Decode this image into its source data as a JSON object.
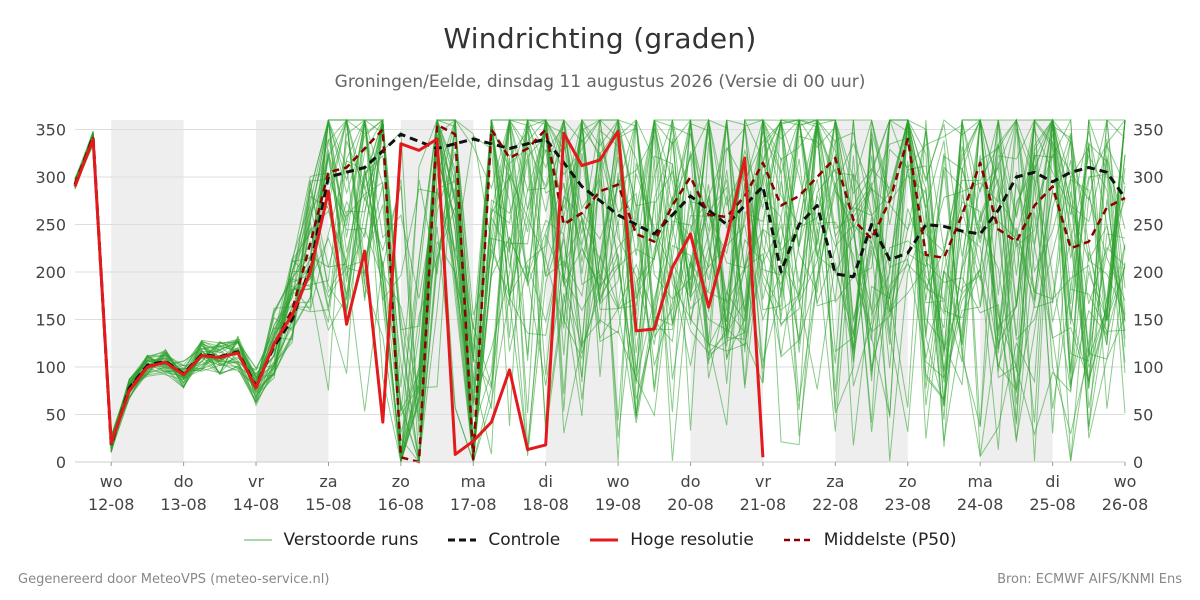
{
  "header": {
    "title": "Windrichting (graden)",
    "subtitle": "Groningen/Eelde, dinsdag 11 augustus 2026 (Versie di 00 uur)"
  },
  "footer": {
    "generated": "Gegenereerd door MeteoVPS (meteo-service.nl)",
    "source": "Bron: ECMWF AIFS/KNMI Ens"
  },
  "legend": {
    "ensemble": "Verstoorde runs",
    "control": "Controle",
    "hires": "Hoge resolutie",
    "median": "Middelste (P50)"
  },
  "colors": {
    "ensemble": "#2ca02c",
    "control": "#111111",
    "hires": "#e31a1c",
    "median": "#8b0000",
    "weekend_band": "#eeeeee",
    "grid": "#dddddd"
  },
  "chart_data": {
    "type": "line",
    "title": "Windrichting (graden)",
    "ylim": [
      0,
      360
    ],
    "xlim": [
      "2026-08-11T12:00",
      "2026-08-26T00:00"
    ],
    "y_ticks": [
      0,
      50,
      100,
      150,
      200,
      250,
      300,
      350
    ],
    "x_ticks": [
      {
        "day": "wo",
        "date": "12-08"
      },
      {
        "day": "do",
        "date": "13-08"
      },
      {
        "day": "vr",
        "date": "14-08"
      },
      {
        "day": "za",
        "date": "15-08"
      },
      {
        "day": "zo",
        "date": "16-08"
      },
      {
        "day": "ma",
        "date": "17-08"
      },
      {
        "day": "di",
        "date": "18-08"
      },
      {
        "day": "wo",
        "date": "19-08"
      },
      {
        "day": "do",
        "date": "20-08"
      },
      {
        "day": "vr",
        "date": "21-08"
      },
      {
        "day": "za",
        "date": "22-08"
      },
      {
        "day": "zo",
        "date": "23-08"
      },
      {
        "day": "ma",
        "date": "24-08"
      },
      {
        "day": "di",
        "date": "25-08"
      },
      {
        "day": "wo",
        "date": "26-08"
      }
    ],
    "shaded_bands": [
      [
        "2026-08-12T00:00",
        "2026-08-13T00:00"
      ],
      [
        "2026-08-14T00:00",
        "2026-08-15T00:00"
      ],
      [
        "2026-08-16T00:00",
        "2026-08-17T00:00"
      ],
      [
        "2026-08-18T00:00",
        "2026-08-19T00:00"
      ],
      [
        "2026-08-20T00:00",
        "2026-08-21T00:00"
      ],
      [
        "2026-08-22T00:00",
        "2026-08-23T00:00"
      ],
      [
        "2026-08-24T00:00",
        "2026-08-25T00:00"
      ]
    ],
    "series": [
      {
        "name": "Hoge resolutie",
        "x": [
          "2026-08-11T12:00",
          "2026-08-11T18:00",
          "2026-08-12T00:00",
          "2026-08-12T06:00",
          "2026-08-12T12:00",
          "2026-08-12T18:00",
          "2026-08-13T00:00",
          "2026-08-13T06:00",
          "2026-08-13T12:00",
          "2026-08-13T18:00",
          "2026-08-14T00:00",
          "2026-08-14T06:00",
          "2026-08-14T12:00",
          "2026-08-14T18:00",
          "2026-08-15T00:00",
          "2026-08-15T06:00",
          "2026-08-15T12:00",
          "2026-08-15T18:00",
          "2026-08-16T00:00",
          "2026-08-16T06:00",
          "2026-08-16T12:00",
          "2026-08-16T18:00",
          "2026-08-17T00:00",
          "2026-08-17T06:00",
          "2026-08-17T12:00",
          "2026-08-17T18:00",
          "2026-08-18T00:00",
          "2026-08-18T06:00",
          "2026-08-18T12:00",
          "2026-08-18T18:00",
          "2026-08-19T00:00",
          "2026-08-19T06:00",
          "2026-08-19T12:00",
          "2026-08-19T18:00",
          "2026-08-20T00:00",
          "2026-08-20T06:00",
          "2026-08-20T12:00",
          "2026-08-20T18:00",
          "2026-08-21T00:00"
        ],
        "y": [
          290,
          340,
          20,
          75,
          100,
          105,
          92,
          112,
          110,
          115,
          78,
          125,
          155,
          200,
          285,
          145,
          222,
          42,
          335,
          328,
          340,
          8,
          22,
          42,
          97,
          13,
          18,
          346,
          312,
          318,
          348,
          138,
          140,
          205,
          240,
          163,
          235,
          320,
          5
        ]
      },
      {
        "name": "Controle",
        "x": [
          "2026-08-11T12:00",
          "2026-08-11T18:00",
          "2026-08-12T00:00",
          "2026-08-12T06:00",
          "2026-08-12T12:00",
          "2026-08-12T18:00",
          "2026-08-13T00:00",
          "2026-08-13T06:00",
          "2026-08-13T12:00",
          "2026-08-13T18:00",
          "2026-08-14T00:00",
          "2026-08-14T06:00",
          "2026-08-14T12:00",
          "2026-08-14T18:00",
          "2026-08-15T00:00",
          "2026-08-15T12:00",
          "2026-08-16T00:00",
          "2026-08-16T12:00",
          "2026-08-17T00:00",
          "2026-08-17T12:00",
          "2026-08-18T00:00",
          "2026-08-18T12:00",
          "2026-08-19T00:00",
          "2026-08-19T12:00",
          "2026-08-20T00:00",
          "2026-08-20T12:00",
          "2026-08-21T00:00",
          "2026-08-21T06:00",
          "2026-08-21T12:00",
          "2026-08-21T18:00",
          "2026-08-22T00:00",
          "2026-08-22T06:00",
          "2026-08-22T12:00",
          "2026-08-22T18:00",
          "2026-08-23T00:00",
          "2026-08-23T06:00",
          "2026-08-23T12:00",
          "2026-08-23T18:00",
          "2026-08-24T00:00",
          "2026-08-24T06:00",
          "2026-08-24T12:00",
          "2026-08-24T18:00",
          "2026-08-25T00:00",
          "2026-08-25T06:00",
          "2026-08-25T12:00",
          "2026-08-25T18:00",
          "2026-08-26T00:00"
        ],
        "y": [
          292,
          342,
          18,
          78,
          102,
          106,
          93,
          113,
          111,
          116,
          80,
          122,
          150,
          205,
          300,
          310,
          345,
          330,
          340,
          330,
          340,
          290,
          260,
          240,
          280,
          250,
          290,
          200,
          250,
          270,
          198,
          195,
          250,
          213,
          220,
          250,
          248,
          243,
          240,
          265,
          300,
          305,
          295,
          305,
          310,
          305,
          278
        ]
      },
      {
        "name": "Middelste (P50)",
        "x": [
          "2026-08-11T12:00",
          "2026-08-11T18:00",
          "2026-08-12T00:00",
          "2026-08-12T06:00",
          "2026-08-12T12:00",
          "2026-08-12T18:00",
          "2026-08-13T00:00",
          "2026-08-13T06:00",
          "2026-08-13T12:00",
          "2026-08-13T18:00",
          "2026-08-14T00:00",
          "2026-08-14T06:00",
          "2026-08-14T12:00",
          "2026-08-14T18:00",
          "2026-08-15T00:00",
          "2026-08-15T06:00",
          "2026-08-15T12:00",
          "2026-08-15T18:00",
          "2026-08-16T00:00",
          "2026-08-16T06:00",
          "2026-08-16T12:00",
          "2026-08-16T18:00",
          "2026-08-17T00:00",
          "2026-08-17T06:00",
          "2026-08-17T12:00",
          "2026-08-17T18:00",
          "2026-08-18T00:00",
          "2026-08-18T06:00",
          "2026-08-18T12:00",
          "2026-08-18T18:00",
          "2026-08-19T00:00",
          "2026-08-19T06:00",
          "2026-08-19T12:00",
          "2026-08-19T18:00",
          "2026-08-20T00:00",
          "2026-08-20T06:00",
          "2026-08-20T12:00",
          "2026-08-20T18:00",
          "2026-08-21T00:00",
          "2026-08-21T06:00",
          "2026-08-21T12:00",
          "2026-08-21T18:00",
          "2026-08-22T00:00",
          "2026-08-22T06:00",
          "2026-08-22T12:00",
          "2026-08-22T18:00",
          "2026-08-23T00:00",
          "2026-08-23T06:00",
          "2026-08-23T12:00",
          "2026-08-23T18:00",
          "2026-08-24T00:00",
          "2026-08-24T06:00",
          "2026-08-24T12:00",
          "2026-08-24T18:00",
          "2026-08-25T00:00",
          "2026-08-25T06:00",
          "2026-08-25T12:00",
          "2026-08-25T18:00",
          "2026-08-26T00:00"
        ],
        "y": [
          293,
          341,
          19,
          77,
          101,
          105,
          92,
          112,
          110,
          115,
          79,
          124,
          160,
          230,
          305,
          310,
          330,
          350,
          5,
          0,
          355,
          345,
          3,
          350,
          320,
          330,
          350,
          250,
          262,
          285,
          292,
          240,
          232,
          270,
          300,
          260,
          258,
          280,
          315,
          270,
          280,
          300,
          320,
          255,
          235,
          275,
          340,
          218,
          215,
          260,
          315,
          245,
          232,
          270,
          290,
          225,
          232,
          268,
          278
        ]
      }
    ]
  }
}
